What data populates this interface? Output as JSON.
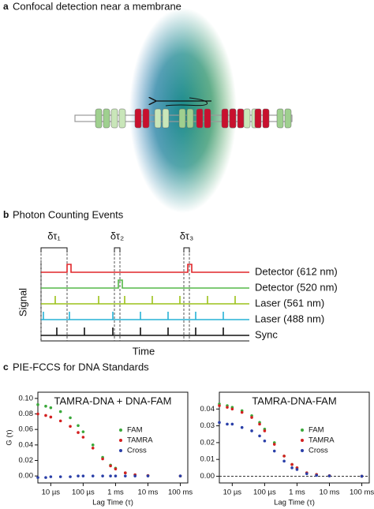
{
  "panels": {
    "a": {
      "label": "a",
      "title": "Confocal detection near a membrane"
    },
    "b": {
      "label": "b",
      "title": "Photon Counting Events",
      "delta_labels": [
        "δτ₁",
        "δτ₂",
        "δτ₃"
      ],
      "traces": [
        "Detector (612 nm)",
        "Detector (520 nm)",
        "Laser (561 nm)",
        "Laser (488 nm)",
        "Sync"
      ],
      "y_label": "Signal",
      "x_label": "Time"
    },
    "c": {
      "label": "c",
      "title": "PIE-FCCS for DNA Standards"
    }
  },
  "chart_data": [
    {
      "type": "scatter",
      "title": "TAMRA-DNA + DNA-FAM",
      "xlabel": "Lag Time (τ)",
      "ylabel": "G (τ)",
      "xscale": "log",
      "legend": "right",
      "zero_line": false,
      "x": [
        4e-06,
        7e-06,
        1e-05,
        2e-05,
        4e-05,
        7e-05,
        0.0001,
        0.0002,
        0.0004,
        0.0007,
        0.001,
        0.002,
        0.004,
        0.01,
        0.1
      ],
      "series": [
        {
          "name": "FAM",
          "color": "#3aa83a",
          "values": [
            0.092,
            0.09,
            0.088,
            0.083,
            0.075,
            0.065,
            0.057,
            0.04,
            0.024,
            0.014,
            0.01,
            0.004,
            0.0015,
            0.0005,
            0
          ]
        },
        {
          "name": "TAMRA",
          "color": "#d42020",
          "values": [
            0.08,
            0.078,
            0.076,
            0.071,
            0.064,
            0.056,
            0.05,
            0.036,
            0.022,
            0.013,
            0.009,
            0.004,
            0.0015,
            0.0005,
            0
          ]
        },
        {
          "name": "Cross",
          "color": "#2a3fa8",
          "values": [
            -0.002,
            -0.002,
            -0.001,
            -0.001,
            -0.001,
            0,
            0,
            0,
            0,
            0,
            0,
            0,
            0,
            0,
            0
          ]
        }
      ],
      "xlim": [
        4e-06,
        0.17
      ],
      "ylim": [
        -0.009,
        0.108
      ],
      "xticks": [
        {
          "value": 1e-05,
          "label": "10 µs"
        },
        {
          "value": 0.0001,
          "label": "100 µs"
        },
        {
          "value": 0.001,
          "label": "1 ms"
        },
        {
          "value": 0.01,
          "label": "10 ms"
        },
        {
          "value": 0.1,
          "label": "100 ms"
        }
      ],
      "yticks": [
        {
          "value": 0,
          "label": "0.00"
        },
        {
          "value": 0.02,
          "label": "0.02"
        },
        {
          "value": 0.04,
          "label": "0.04"
        },
        {
          "value": 0.06,
          "label": "0.06"
        },
        {
          "value": 0.08,
          "label": "0.08"
        },
        {
          "value": 0.1,
          "label": "0.10"
        }
      ]
    },
    {
      "type": "scatter",
      "title": "TAMRA-DNA-FAM",
      "xlabel": "Lag Time (τ)",
      "xscale": "log",
      "legend": "right",
      "zero_line": true,
      "x": [
        4e-06,
        7e-06,
        1e-05,
        2e-05,
        4e-05,
        7e-05,
        0.0001,
        0.0002,
        0.0004,
        0.0007,
        0.001,
        0.002,
        0.004,
        0.01,
        0.1
      ],
      "series": [
        {
          "name": "FAM",
          "color": "#3aa83a",
          "values": [
            0.043,
            0.042,
            0.041,
            0.039,
            0.036,
            0.032,
            0.028,
            0.02,
            0.012,
            0.007,
            0.005,
            0.002,
            0.001,
            0.0003,
            0
          ]
        },
        {
          "name": "TAMRA",
          "color": "#d42020",
          "values": [
            0.042,
            0.041,
            0.04,
            0.038,
            0.035,
            0.031,
            0.027,
            0.019,
            0.012,
            0.007,
            0.005,
            0.002,
            0.001,
            0.0003,
            0
          ]
        },
        {
          "name": "Cross",
          "color": "#2a3fa8",
          "values": [
            0.032,
            0.031,
            0.031,
            0.029,
            0.027,
            0.024,
            0.021,
            0.015,
            0.009,
            0.005,
            0.004,
            0.0015,
            0.0005,
            0.0002,
            0
          ]
        }
      ],
      "xlim": [
        4e-06,
        0.17
      ],
      "ylim": [
        -0.004,
        0.05
      ],
      "xticks": [
        {
          "value": 1e-05,
          "label": "10 µs"
        },
        {
          "value": 0.0001,
          "label": "100 µs"
        },
        {
          "value": 0.001,
          "label": "1 ms"
        },
        {
          "value": 0.01,
          "label": "10 ms"
        },
        {
          "value": 0.1,
          "label": "100 ms"
        }
      ],
      "yticks": [
        {
          "value": 0,
          "label": "0.00"
        },
        {
          "value": 0.01,
          "label": "0.01"
        },
        {
          "value": 0.02,
          "label": "0.02"
        },
        {
          "value": 0.03,
          "label": "0.03"
        },
        {
          "value": 0.04,
          "label": "0.04"
        }
      ]
    }
  ]
}
